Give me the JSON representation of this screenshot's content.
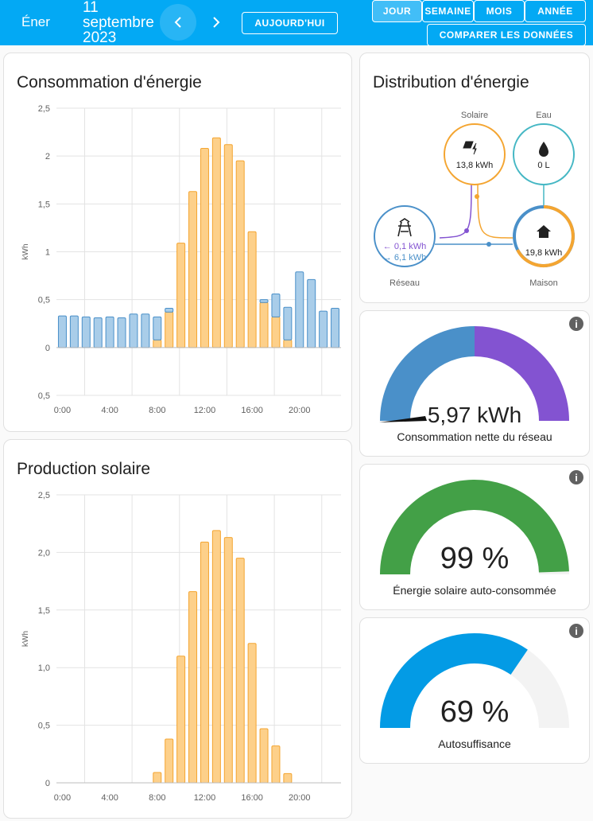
{
  "header": {
    "title": "Éner",
    "date": "11 septembre 2023",
    "today": "AUJOURD'HUI",
    "periods": [
      "JOUR",
      "SEMAINE",
      "MOIS",
      "ANNÉE"
    ],
    "compare": "COMPARER LES DONNÉES"
  },
  "consumption": {
    "type": "bar",
    "title": "Consommation d'énergie",
    "y_label": "kWh",
    "x": [
      0,
      1,
      2,
      3,
      4,
      5,
      6,
      7,
      8,
      9,
      10,
      11,
      12,
      13,
      14,
      15,
      16,
      17,
      18,
      19,
      20,
      21,
      22,
      23
    ],
    "series": [
      {
        "name": "Solaire",
        "color": "#f4a531",
        "values": [
          0,
          0,
          0,
          0,
          0,
          0,
          0,
          0,
          0.08,
          0.37,
          1.09,
          1.63,
          2.08,
          2.19,
          2.12,
          1.95,
          1.21,
          0.47,
          0.32,
          0.08,
          0,
          0,
          0,
          0
        ]
      },
      {
        "name": "Réseau",
        "color": "#4a90c9",
        "values": [
          0.33,
          0.33,
          0.32,
          0.31,
          0.32,
          0.31,
          0.35,
          0.35,
          0.24,
          0.04,
          0,
          0,
          0,
          0,
          0,
          0,
          0,
          0.03,
          0.24,
          0.34,
          0.79,
          0.71,
          0.38,
          0.41
        ]
      }
    ],
    "ylim": [
      -0.5,
      2.5
    ],
    "yticks": [
      {
        "value": 2.5,
        "label": "2,5"
      },
      2,
      {
        "value": 1.5,
        "label": "1,5"
      },
      1,
      {
        "value": 0.5,
        "label": "0,5"
      },
      0,
      {
        "value": -0.5,
        "label": "0,5"
      }
    ],
    "xlim": [
      -0.5,
      23.5
    ],
    "xticks": [
      {
        "value": 0,
        "label": "0:00"
      },
      {
        "value": 4,
        "label": "4:00"
      },
      {
        "value": 8,
        "label": "8:00"
      },
      {
        "value": 12,
        "label": "12:00"
      },
      {
        "value": 16,
        "label": "16:00"
      },
      {
        "value": 20,
        "label": "20:00"
      }
    ],
    "grid": true
  },
  "solar": {
    "type": "bar",
    "title": "Production solaire",
    "y_label": "kWh",
    "x": [
      0,
      1,
      2,
      3,
      4,
      5,
      6,
      7,
      8,
      9,
      10,
      11,
      12,
      13,
      14,
      15,
      16,
      17,
      18,
      19,
      20,
      21,
      22,
      23
    ],
    "series": [
      {
        "name": "Solaire",
        "color": "#f4a531",
        "values": [
          null,
          null,
          null,
          null,
          null,
          null,
          null,
          null,
          0.09,
          0.38,
          1.1,
          1.66,
          2.09,
          2.19,
          2.13,
          1.95,
          1.21,
          0.47,
          0.32,
          0.08,
          null,
          null,
          null,
          null
        ]
      }
    ],
    "ylim": [
      0,
      2.5
    ],
    "yticks": [
      {
        "value": 2.5,
        "label": "2,5"
      },
      {
        "value": 2,
        "label": "2,0"
      },
      {
        "value": 1.5,
        "label": "1,5"
      },
      {
        "value": 1,
        "label": "1,0"
      },
      {
        "value": 0.5,
        "label": "0,5"
      },
      0
    ],
    "xlim": [
      -0.5,
      23.5
    ],
    "xticks": [
      {
        "value": 0,
        "label": "0:00"
      },
      {
        "value": 4,
        "label": "4:00"
      },
      {
        "value": 8,
        "label": "8:00"
      },
      {
        "value": 12,
        "label": "12:00"
      },
      {
        "value": 16,
        "label": "16:00"
      },
      {
        "value": 20,
        "label": "20:00"
      }
    ],
    "grid": true
  },
  "distribution": {
    "title": "Distribution d'énergie",
    "solar": {
      "label": "Solaire",
      "value": "13,8 kWh"
    },
    "water": {
      "label": "Eau",
      "value": "0 L"
    },
    "grid": {
      "label": "Réseau",
      "from": "← 0,1 kWh",
      "to": "→ 6,1 kWh"
    },
    "home": {
      "label": "Maison",
      "value": "19,8 kWh"
    }
  },
  "gauges": [
    {
      "value": 5.97,
      "value_label": "5,97 kWh",
      "name": "Consommation nette du réseau"
    },
    {
      "value": 99,
      "value_label": "99 %",
      "name": "Énergie solaire auto-consommée",
      "color": "#43a047"
    },
    {
      "value": 69,
      "value_label": "69 %",
      "name": "Autosuffisance",
      "color": "#039be5"
    }
  ]
}
